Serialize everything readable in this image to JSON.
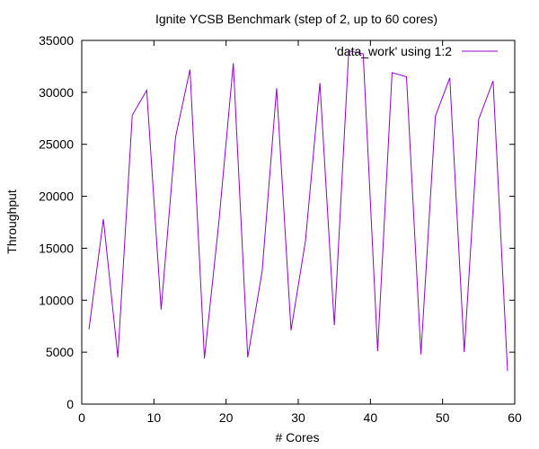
{
  "chart_data": {
    "type": "line",
    "title": "Ignite YCSB Benchmark (step of 2, up to 60 cores)",
    "xlabel": "# Cores",
    "ylabel": "Throughput",
    "xlim": [
      0,
      60
    ],
    "ylim": [
      0,
      35000
    ],
    "xticks": [
      0,
      10,
      20,
      30,
      40,
      50,
      60
    ],
    "yticks": [
      0,
      5000,
      10000,
      15000,
      20000,
      25000,
      30000,
      35000
    ],
    "grid": false,
    "legend_position": "top-right",
    "series": [
      {
        "name": "'data_work' using 1:2",
        "color": "#9400d3",
        "x": [
          1,
          3,
          5,
          7,
          9,
          11,
          13,
          15,
          17,
          19,
          21,
          23,
          25,
          27,
          29,
          31,
          33,
          35,
          37,
          39,
          41,
          43,
          45,
          47,
          49,
          51,
          53,
          55,
          57,
          59
        ],
        "y": [
          7200,
          17800,
          4500,
          27800,
          30200,
          9100,
          25700,
          32200,
          4400,
          17500,
          32800,
          4500,
          12800,
          30400,
          7100,
          15700,
          30900,
          7600,
          34000,
          33700,
          5100,
          31900,
          31500,
          4800,
          27700,
          31400,
          5000,
          27400,
          31100,
          3200
        ]
      }
    ]
  }
}
